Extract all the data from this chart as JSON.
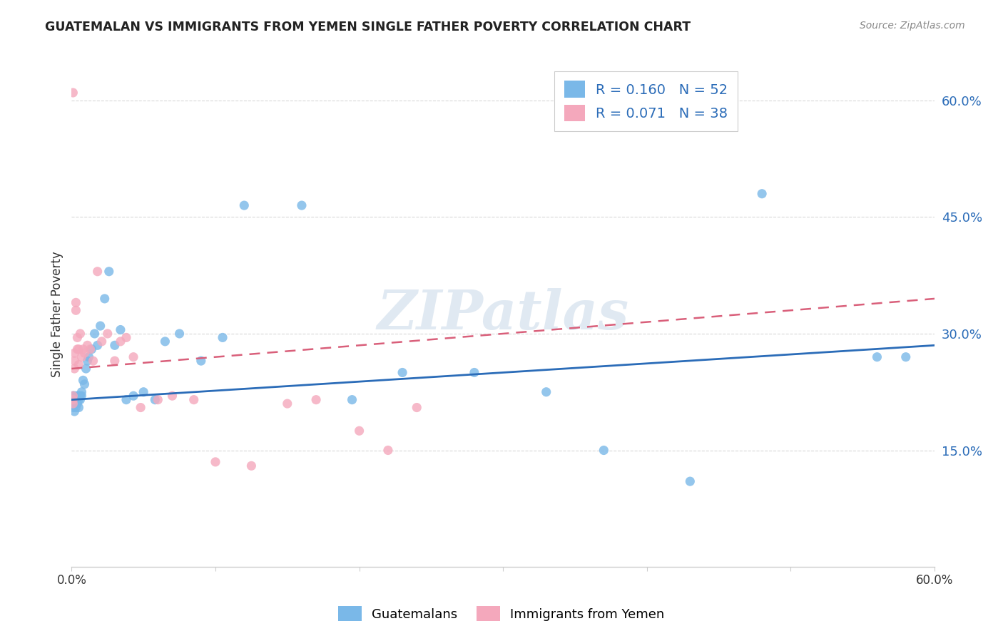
{
  "title": "GUATEMALAN VS IMMIGRANTS FROM YEMEN SINGLE FATHER POVERTY CORRELATION CHART",
  "source": "Source: ZipAtlas.com",
  "ylabel": "Single Father Poverty",
  "x_min": 0.0,
  "x_max": 0.6,
  "y_min": 0.0,
  "y_max": 0.65,
  "y_ticks": [
    0.15,
    0.3,
    0.45,
    0.6
  ],
  "y_tick_labels": [
    "15.0%",
    "30.0%",
    "45.0%",
    "60.0%"
  ],
  "legend_label_1": "Guatemalans",
  "legend_label_2": "Immigrants from Yemen",
  "R1": 0.16,
  "N1": 52,
  "R2": 0.071,
  "N2": 38,
  "color_blue": "#7ab8e8",
  "color_pink": "#f4a8bc",
  "color_blue_line": "#2b6cb8",
  "color_pink_line": "#d95f7a",
  "watermark": "ZIPatlas",
  "guatemalan_x": [
    0.001,
    0.001,
    0.001,
    0.001,
    0.002,
    0.002,
    0.002,
    0.002,
    0.003,
    0.003,
    0.003,
    0.004,
    0.004,
    0.005,
    0.005,
    0.005,
    0.006,
    0.006,
    0.007,
    0.007,
    0.008,
    0.009,
    0.01,
    0.011,
    0.012,
    0.014,
    0.016,
    0.018,
    0.02,
    0.023,
    0.026,
    0.03,
    0.034,
    0.038,
    0.043,
    0.05,
    0.058,
    0.065,
    0.075,
    0.09,
    0.105,
    0.12,
    0.16,
    0.195,
    0.23,
    0.28,
    0.33,
    0.37,
    0.43,
    0.48,
    0.56,
    0.58
  ],
  "guatemalan_y": [
    0.205,
    0.21,
    0.215,
    0.22,
    0.2,
    0.21,
    0.215,
    0.22,
    0.21,
    0.215,
    0.205,
    0.22,
    0.21,
    0.205,
    0.215,
    0.22,
    0.22,
    0.215,
    0.22,
    0.225,
    0.24,
    0.235,
    0.255,
    0.265,
    0.27,
    0.28,
    0.3,
    0.285,
    0.31,
    0.345,
    0.38,
    0.285,
    0.305,
    0.215,
    0.22,
    0.225,
    0.215,
    0.29,
    0.3,
    0.265,
    0.295,
    0.465,
    0.465,
    0.215,
    0.25,
    0.25,
    0.225,
    0.15,
    0.11,
    0.48,
    0.27,
    0.27
  ],
  "yemen_x": [
    0.001,
    0.001,
    0.001,
    0.001,
    0.002,
    0.002,
    0.002,
    0.003,
    0.003,
    0.004,
    0.004,
    0.005,
    0.005,
    0.006,
    0.007,
    0.008,
    0.009,
    0.011,
    0.013,
    0.015,
    0.018,
    0.021,
    0.025,
    0.03,
    0.034,
    0.038,
    0.043,
    0.048,
    0.06,
    0.07,
    0.085,
    0.1,
    0.125,
    0.15,
    0.17,
    0.2,
    0.22,
    0.24
  ],
  "yemen_y": [
    0.61,
    0.215,
    0.21,
    0.22,
    0.275,
    0.255,
    0.265,
    0.33,
    0.34,
    0.295,
    0.28,
    0.26,
    0.28,
    0.3,
    0.27,
    0.28,
    0.275,
    0.285,
    0.28,
    0.265,
    0.38,
    0.29,
    0.3,
    0.265,
    0.29,
    0.295,
    0.27,
    0.205,
    0.215,
    0.22,
    0.215,
    0.135,
    0.13,
    0.21,
    0.215,
    0.175,
    0.15,
    0.205
  ],
  "blue_line_x0": 0.0,
  "blue_line_y0": 0.215,
  "blue_line_x1": 0.6,
  "blue_line_y1": 0.285,
  "pink_line_x0": 0.0,
  "pink_line_y0": 0.255,
  "pink_line_x1": 0.6,
  "pink_line_y1": 0.345
}
